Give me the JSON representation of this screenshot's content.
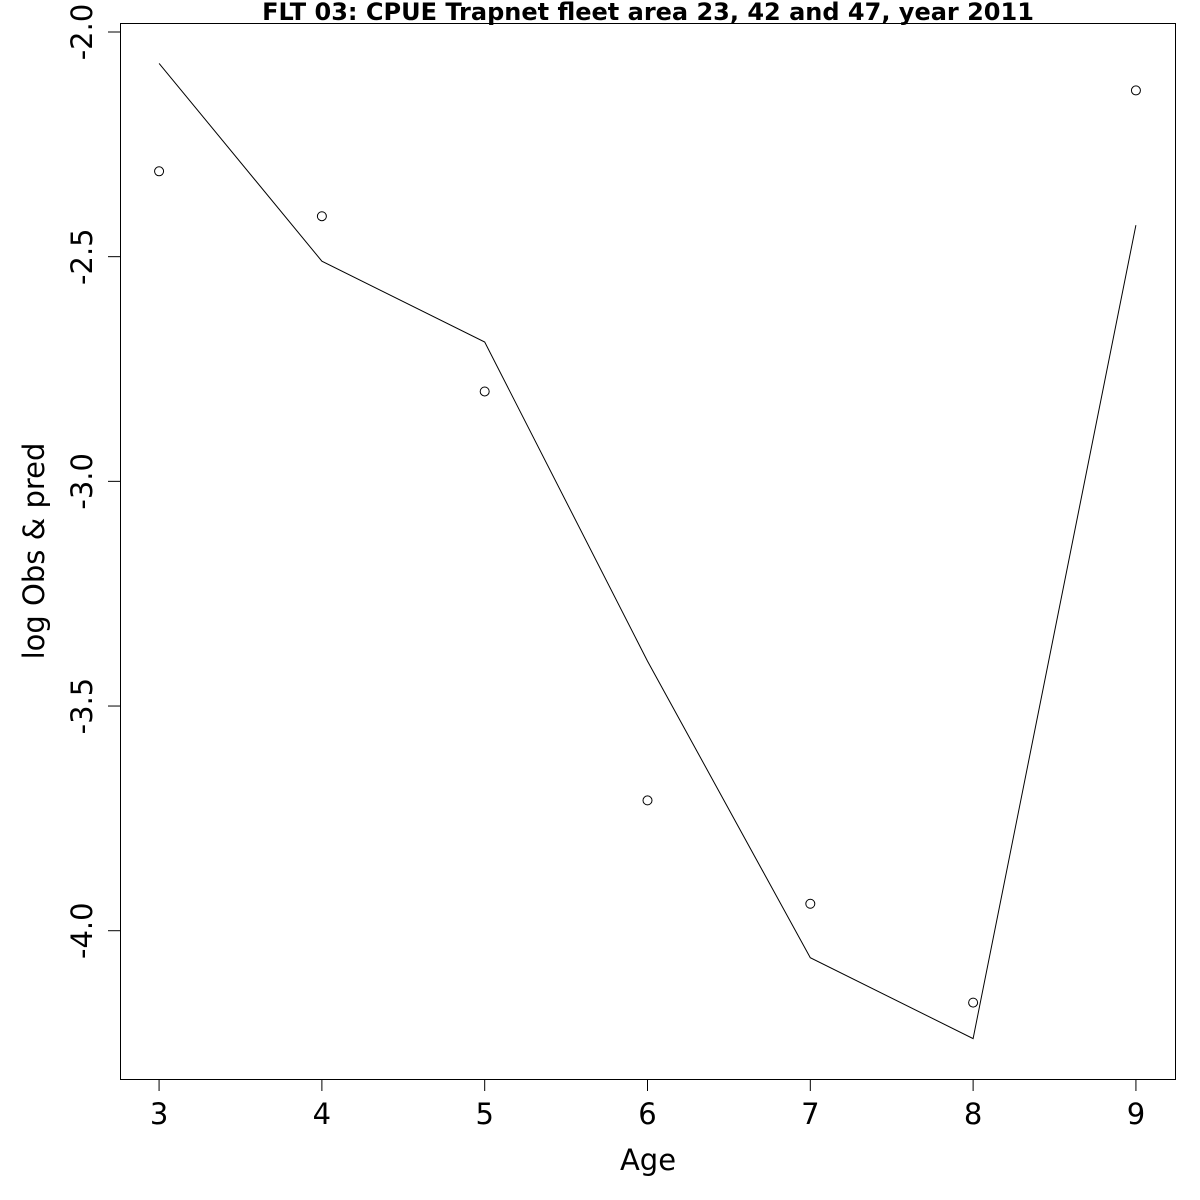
{
  "chart_data": {
    "type": "line",
    "title": "FLT 03: CPUE Trapnet fleet area 23, 42 and 47, year 2011",
    "xlabel": "Age",
    "ylabel": "log Obs & pred",
    "xlim": [
      2.76,
      9.24
    ],
    "ylim": [
      -4.33,
      -1.98
    ],
    "x_ticks": [
      3,
      4,
      5,
      6,
      7,
      8,
      9
    ],
    "x_tick_labels": [
      "3",
      "4",
      "5",
      "6",
      "7",
      "8",
      "9"
    ],
    "y_ticks": [
      -2.0,
      -2.5,
      -3.0,
      -3.5,
      -4.0
    ],
    "y_tick_labels": [
      "-2.0",
      "-2.5",
      "-3.0",
      "-3.5",
      "-4.0"
    ],
    "grid": false,
    "legend": "none",
    "x": [
      3,
      4,
      5,
      6,
      7,
      8,
      9
    ],
    "series": [
      {
        "role": "observed",
        "style": "open-circle",
        "values": [
          -2.31,
          -2.41,
          -2.8,
          -3.71,
          -3.94,
          -4.16,
          -2.13
        ]
      },
      {
        "role": "predicted",
        "style": "line",
        "values": [
          -2.07,
          -2.51,
          -2.69,
          -3.4,
          -4.06,
          -4.24,
          -2.43
        ]
      }
    ]
  }
}
